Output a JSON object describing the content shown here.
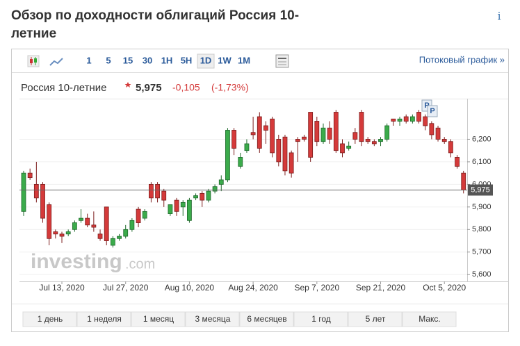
{
  "page": {
    "title": "Обзор по доходности облигаций Россия 10-летние",
    "info": "i",
    "toolbar": [
      "1",
      "5",
      "15",
      "30",
      "1H",
      "5H",
      "1D",
      "1W",
      "1M"
    ],
    "streaming": "Потоковый график »",
    "instrument": "Россия 10-летние",
    "change": "-0,105",
    "change_pct": "(-1,73%)",
    "ranges": [
      "1 день",
      "1 неделя",
      "1 месяц",
      "3 месяца",
      "6 месяцев",
      "1 год",
      "5 лет",
      "Макс."
    ]
  },
  "chart_data": {
    "type": "candlestick",
    "categories": [
      null,
      null,
      null,
      null,
      null,
      null,
      "Jul 13, 2020",
      null,
      null,
      null,
      null,
      null,
      null,
      null,
      null,
      null,
      "Jul 27, 2020",
      null,
      null,
      null,
      null,
      null,
      null,
      null,
      null,
      null,
      "Aug 10, 2020",
      null,
      null,
      null,
      null,
      null,
      null,
      null,
      null,
      null,
      "Aug 24, 2020",
      null,
      null,
      null,
      null,
      null,
      null,
      null,
      null,
      null,
      "Sep 7, 2020",
      null,
      null,
      null,
      null,
      null,
      null,
      null,
      null,
      null,
      "Sep 21, 2020",
      null,
      null,
      null,
      null,
      null,
      null,
      null,
      null,
      null,
      "Oct 5, 2020",
      null,
      null,
      null
    ],
    "open": [
      5.88,
      6.05,
      6.0,
      6.0,
      5.91,
      5.79,
      5.78,
      5.78,
      5.8,
      5.84,
      5.85,
      5.82,
      5.78,
      5.9,
      5.73,
      5.76,
      5.77,
      5.8,
      5.89,
      5.85,
      6.0,
      6.0,
      5.97,
      5.87,
      5.93,
      5.9,
      5.84,
      5.94,
      5.96,
      5.93,
      5.97,
      6.0,
      6.02,
      6.24,
      6.08,
      6.15,
      6.23,
      6.3,
      6.26,
      6.29,
      6.2,
      6.21,
      6.14,
      6.2,
      6.21,
      6.32,
      6.28,
      6.19,
      6.25,
      6.32,
      6.18,
      6.16,
      6.23,
      6.32,
      6.2,
      6.19,
      6.19,
      6.2,
      6.29,
      6.28,
      6.3,
      6.28,
      6.32,
      6.3,
      6.27,
      6.25,
      6.2,
      6.19,
      6.12,
      6.05
    ],
    "high": [
      6.06,
      6.07,
      6.1,
      6.01,
      5.92,
      5.8,
      5.79,
      5.8,
      5.84,
      5.89,
      5.87,
      5.88,
      5.8,
      5.9,
      5.77,
      5.78,
      5.82,
      5.85,
      5.9,
      5.89,
      6.01,
      6.01,
      5.98,
      5.91,
      5.94,
      5.93,
      5.94,
      5.96,
      5.97,
      5.98,
      6.0,
      6.04,
      6.25,
      6.25,
      6.14,
      6.2,
      6.3,
      6.32,
      6.28,
      6.3,
      6.22,
      6.22,
      6.15,
      6.21,
      6.22,
      6.32,
      6.3,
      6.27,
      6.28,
      6.33,
      6.2,
      6.19,
      6.25,
      6.33,
      6.21,
      6.2,
      6.21,
      6.27,
      6.29,
      6.3,
      6.31,
      6.31,
      6.33,
      6.31,
      6.28,
      6.26,
      6.21,
      6.2,
      6.13,
      6.06
    ],
    "low": [
      5.86,
      6.02,
      5.92,
      5.83,
      5.73,
      5.76,
      5.74,
      5.77,
      5.79,
      5.83,
      5.81,
      5.79,
      5.75,
      5.73,
      5.72,
      5.75,
      5.76,
      5.79,
      5.81,
      5.84,
      5.92,
      5.92,
      5.9,
      5.86,
      5.86,
      5.86,
      5.83,
      5.93,
      5.9,
      5.92,
      5.96,
      5.97,
      6.01,
      6.13,
      6.07,
      6.14,
      6.2,
      6.14,
      6.18,
      6.12,
      6.08,
      6.04,
      6.03,
      6.1,
      6.19,
      6.1,
      6.17,
      6.18,
      6.18,
      6.14,
      6.12,
      6.15,
      6.18,
      6.17,
      6.18,
      6.17,
      6.17,
      6.19,
      6.26,
      6.26,
      6.27,
      6.27,
      6.27,
      6.24,
      6.2,
      6.19,
      6.18,
      6.12,
      6.07,
      5.96
    ],
    "close": [
      6.05,
      6.03,
      5.94,
      5.85,
      5.76,
      5.78,
      5.77,
      5.79,
      5.83,
      5.85,
      5.82,
      5.81,
      5.76,
      5.75,
      5.76,
      5.77,
      5.8,
      5.84,
      5.83,
      5.88,
      5.94,
      5.94,
      5.93,
      5.91,
      5.88,
      5.92,
      5.93,
      5.95,
      5.93,
      5.97,
      5.99,
      6.02,
      6.24,
      6.16,
      6.12,
      6.18,
      6.22,
      6.16,
      6.24,
      6.14,
      6.1,
      6.06,
      6.05,
      6.19,
      6.2,
      6.12,
      6.19,
      6.25,
      6.2,
      6.15,
      6.14,
      6.17,
      6.2,
      6.19,
      6.19,
      6.18,
      6.2,
      6.26,
      6.28,
      6.29,
      6.28,
      6.3,
      6.28,
      6.26,
      6.22,
      6.2,
      6.19,
      6.14,
      6.08,
      5.975
    ],
    "up_color": "#3bab4b",
    "down_color": "#d43a3a",
    "last": {
      "value": 5.975,
      "label": "5,975"
    },
    "ylim": [
      5.57,
      6.38
    ],
    "yticks": [
      {
        "value": 5.6,
        "label": "5,600"
      },
      {
        "value": 5.7,
        "label": "5,700"
      },
      {
        "value": 5.8,
        "label": "5,800"
      },
      {
        "value": 5.9,
        "label": "5,900"
      },
      {
        "value": 6.0,
        "label": "6,000"
      },
      {
        "value": 6.1,
        "label": "6,100"
      },
      {
        "value": 6.2,
        "label": "6,200"
      }
    ],
    "annotations": [
      "P",
      "P"
    ],
    "watermark": [
      "investing",
      ".com"
    ]
  }
}
